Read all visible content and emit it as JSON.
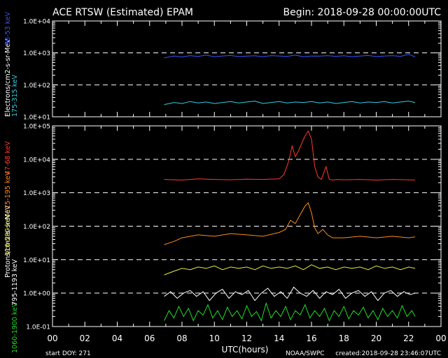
{
  "header": {
    "title": "ACE RTSW (Estimated) EPAM",
    "begin": "Begin: 2018-09-28 00:00:00UTC"
  },
  "footer": {
    "start_doy": "start DOY:  271",
    "xlabel": "UTC(hours)",
    "source": "NOAA/SWPC",
    "created": "created:2018-09-28 23:46:07UTC"
  },
  "colors": {
    "background": "#000000",
    "axes": "#ffffff",
    "electrons_38_53": "#3355ff",
    "electrons_175_315": "#33d0e0",
    "protons_47_68": "#ff3b2a",
    "protons_115_195": "#ff8a1a",
    "protons_310_580": "#e8e840",
    "protons_795_1193": "#ffffff",
    "protons_1060_1900": "#22dd22"
  },
  "chart_data": [
    {
      "type": "line",
      "name": "electrons",
      "ylabel": "Electrons/cm2-s-sr-MeV",
      "yscale": "log",
      "ylim": [
        10,
        10000
      ],
      "xlim": [
        0,
        24
      ],
      "y_tick_labels": [
        "1.0E+01",
        "1.0E+02",
        "1.0E+03",
        "1.0E+04"
      ],
      "dashed_grid": [
        100,
        1000
      ],
      "series": [
        {
          "name": "38-53 keV",
          "color": "#3355ff",
          "x": [
            6.9,
            7.5,
            8,
            8.5,
            9,
            9.5,
            10,
            10.5,
            11,
            11.5,
            12,
            12.5,
            13,
            13.5,
            14,
            14.5,
            15,
            15.5,
            16,
            16.5,
            17,
            17.5,
            18,
            18.5,
            19,
            19.5,
            20,
            20.5,
            21,
            21.5,
            22,
            22.4
          ],
          "y": [
            700,
            800,
            750,
            820,
            780,
            850,
            760,
            800,
            830,
            770,
            790,
            810,
            760,
            820,
            800,
            780,
            850,
            760,
            800,
            790,
            820,
            780,
            810,
            760,
            800,
            830,
            770,
            800,
            820,
            780,
            900,
            760
          ]
        },
        {
          "name": "175-315 keV",
          "color": "#33d0e0",
          "x": [
            6.9,
            7.5,
            8,
            8.5,
            9,
            9.5,
            10,
            10.5,
            11,
            11.5,
            12,
            12.5,
            13,
            13.5,
            14,
            14.5,
            15,
            15.5,
            16,
            16.5,
            17,
            17.5,
            18,
            18.5,
            19,
            19.5,
            20,
            20.5,
            21,
            21.5,
            22,
            22.4
          ],
          "y": [
            24,
            28,
            26,
            30,
            27,
            29,
            26,
            28,
            30,
            27,
            29,
            31,
            26,
            28,
            30,
            27,
            29,
            28,
            30,
            27,
            29,
            26,
            28,
            30,
            27,
            29,
            28,
            30,
            27,
            29,
            31,
            28
          ]
        }
      ]
    },
    {
      "type": "line",
      "name": "protons",
      "ylabel": "Protons/cm2-s-sr-MeV",
      "yscale": "log",
      "ylim": [
        0.1,
        100000
      ],
      "xlim": [
        0,
        24
      ],
      "y_tick_labels": [
        "1.0E-01",
        "1.0E+00",
        "1.0E+01",
        "1.0E+02",
        "1.0E+03",
        "1.0E+04",
        "1.0E+05"
      ],
      "dashed_grid": [
        1,
        10,
        100,
        1000,
        10000
      ],
      "x_tick_labels": [
        "00",
        "02",
        "04",
        "06",
        "08",
        "10",
        "12",
        "14",
        "16",
        "18",
        "20",
        "22",
        "00"
      ],
      "series": [
        {
          "name": "47-68 keV",
          "color": "#ff3b2a",
          "x": [
            6.9,
            8,
            9,
            10,
            11,
            12,
            13,
            14,
            14.3,
            14.6,
            14.8,
            15,
            15.2,
            15.4,
            15.6,
            15.8,
            16,
            16.2,
            16.4,
            16.6,
            16.9,
            17.1,
            17.3,
            17.6,
            18,
            19,
            20,
            21,
            22,
            22.4
          ],
          "y": [
            2500,
            2400,
            2600,
            2500,
            2450,
            2550,
            2500,
            2600,
            3500,
            9000,
            25000,
            12000,
            18000,
            30000,
            50000,
            70000,
            40000,
            6000,
            3000,
            2500,
            6000,
            2500,
            2400,
            2500,
            2450,
            2500,
            2400,
            2500,
            2450,
            2400
          ]
        },
        {
          "name": "115-195 keV",
          "color": "#ff8a1a",
          "x": [
            6.9,
            7.5,
            8,
            9,
            10,
            11,
            12,
            13,
            14,
            14.4,
            14.7,
            15,
            15.3,
            15.6,
            15.8,
            16,
            16.2,
            16.4,
            16.7,
            17,
            17.3,
            18,
            19,
            20,
            21,
            22,
            22.4
          ],
          "y": [
            28,
            35,
            45,
            55,
            50,
            60,
            55,
            50,
            65,
            80,
            150,
            120,
            220,
            400,
            500,
            250,
            90,
            60,
            80,
            55,
            45,
            45,
            50,
            45,
            50,
            45,
            48
          ]
        },
        {
          "name": "310-580 keV",
          "color": "#e8e840",
          "x": [
            6.9,
            7.5,
            8,
            8.5,
            9,
            9.5,
            10,
            10.5,
            11,
            11.5,
            12,
            12.5,
            13,
            13.5,
            14,
            14.5,
            15,
            15.5,
            16,
            16.5,
            17,
            17.5,
            18,
            18.5,
            19,
            19.5,
            20,
            20.5,
            21,
            21.5,
            22,
            22.4
          ],
          "y": [
            3.5,
            4.5,
            5.5,
            5,
            6,
            5.5,
            6.5,
            5,
            6,
            5.5,
            6,
            5,
            6.5,
            5.5,
            6,
            5.5,
            6.5,
            5,
            7,
            5.5,
            6,
            5,
            6,
            5.5,
            6,
            5,
            6.5,
            5.5,
            6,
            5,
            6,
            5.5
          ]
        },
        {
          "name": "795-1193 keV",
          "color": "#ffffff",
          "x": [
            6.9,
            7.3,
            7.7,
            8.1,
            8.5,
            8.9,
            9.3,
            9.7,
            10.1,
            10.5,
            10.9,
            11.3,
            11.7,
            12.1,
            12.5,
            12.9,
            13.3,
            13.7,
            14.1,
            14.5,
            14.9,
            15.3,
            15.7,
            16.1,
            16.5,
            16.9,
            17.3,
            17.7,
            18.1,
            18.5,
            18.9,
            19.3,
            19.7,
            20.1,
            20.5,
            20.9,
            21.3,
            21.7,
            22.1,
            22.4
          ],
          "y": [
            0.8,
            1.1,
            0.7,
            1.0,
            1.2,
            0.8,
            1.1,
            0.6,
            1.0,
            1.3,
            0.7,
            1.1,
            0.9,
            1.2,
            0.6,
            1.0,
            1.4,
            0.8,
            1.1,
            0.7,
            1.5,
            1.0,
            0.8,
            1.2,
            0.7,
            1.1,
            0.9,
            1.3,
            0.7,
            1.0,
            1.2,
            0.8,
            1.1,
            0.6,
            1.0,
            1.2,
            0.8,
            1.1,
            0.9,
            1.0
          ]
        },
        {
          "name": "1060-1900 keV",
          "color": "#22dd22",
          "x": [
            6.9,
            7.2,
            7.5,
            7.8,
            8.1,
            8.4,
            8.7,
            9,
            9.3,
            9.6,
            9.9,
            10.2,
            10.5,
            10.8,
            11.1,
            11.4,
            11.7,
            12,
            12.3,
            12.6,
            12.9,
            13.2,
            13.5,
            13.8,
            14.1,
            14.4,
            14.7,
            15,
            15.3,
            15.6,
            15.9,
            16.2,
            16.5,
            16.8,
            17.1,
            17.4,
            17.7,
            18,
            18.3,
            18.6,
            18.9,
            19.2,
            19.5,
            19.8,
            20.1,
            20.4,
            20.7,
            21,
            21.3,
            21.6,
            21.9,
            22.2,
            22.4
          ],
          "y": [
            0.15,
            0.3,
            0.18,
            0.4,
            0.2,
            0.35,
            0.15,
            0.3,
            0.22,
            0.45,
            0.18,
            0.3,
            0.16,
            0.38,
            0.2,
            0.3,
            0.17,
            0.42,
            0.2,
            0.28,
            0.15,
            0.5,
            0.18,
            0.3,
            0.2,
            0.4,
            0.16,
            0.3,
            0.22,
            0.45,
            0.18,
            0.3,
            0.2,
            0.35,
            0.15,
            0.3,
            0.2,
            0.4,
            0.17,
            0.3,
            0.22,
            0.38,
            0.18,
            0.3,
            0.16,
            0.35,
            0.2,
            0.3,
            0.18,
            0.42,
            0.2,
            0.3,
            0.2
          ]
        }
      ]
    }
  ]
}
